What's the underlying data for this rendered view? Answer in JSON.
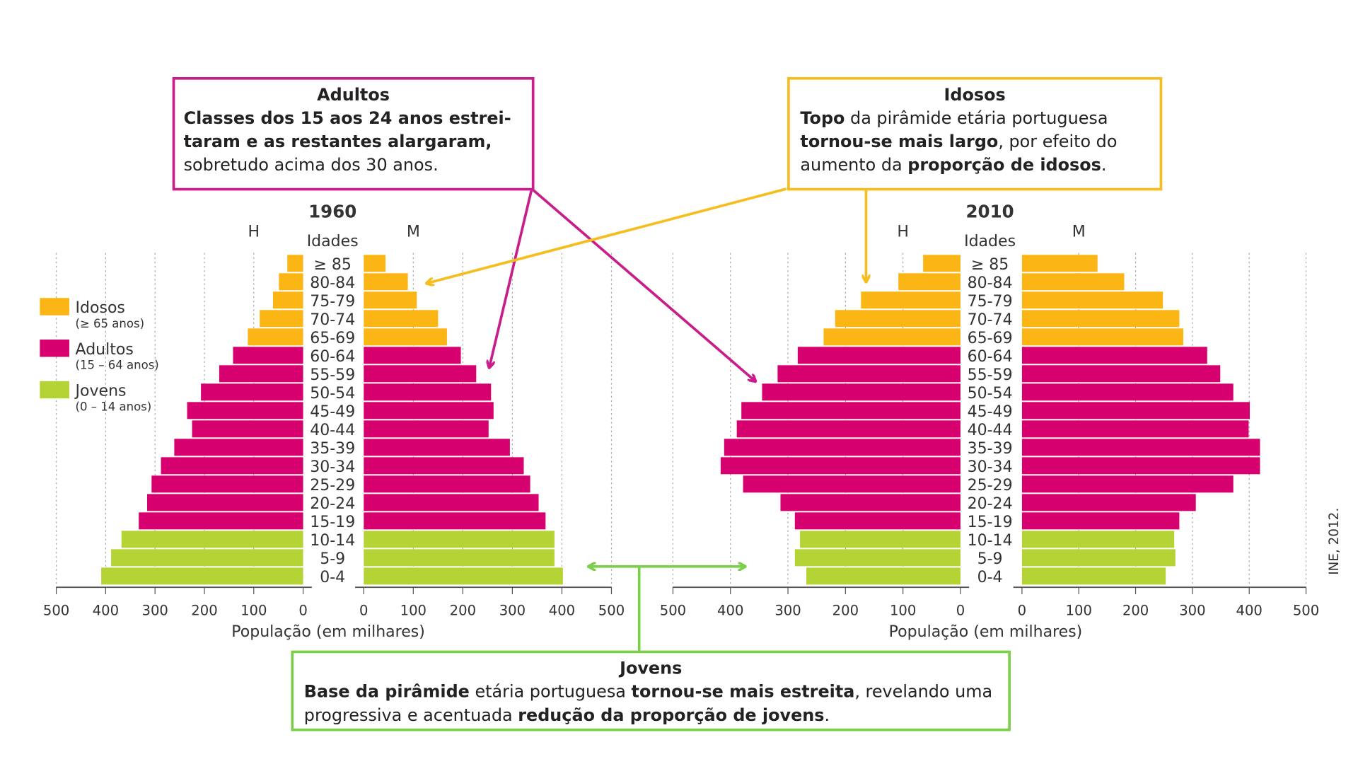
{
  "colors": {
    "idosos": "#fbb515",
    "adultos": "#d6006e",
    "jovens": "#b4d334",
    "adultos_box": "#c81d8a",
    "idosos_box": "#f5be1e",
    "jovens_box": "#7ccf4a"
  },
  "legend": [
    {
      "key": "idosos",
      "label": "Idosos",
      "sub": "(≥ 65 anos)"
    },
    {
      "key": "adultos",
      "label": "Adultos",
      "sub": "(15 – 64 anos)"
    },
    {
      "key": "jovens",
      "label": "Jovens",
      "sub": "(0 – 14 anos)"
    }
  ],
  "boxes": {
    "adultos": {
      "title": "Adultos",
      "segments": [
        {
          "text": "Classes dos 15 aos 24 anos estrei-taram e as restantes alargaram,",
          "bold": true
        },
        {
          "text": " sobretudo acima dos 30 anos.",
          "bold": false
        }
      ]
    },
    "idosos": {
      "title": "Idosos",
      "segments": [
        {
          "text": "Topo",
          "bold": true
        },
        {
          "text": " da pirâmide etária portuguesa ",
          "bold": false
        },
        {
          "text": "tornou-se mais largo",
          "bold": true
        },
        {
          "text": ", por efeito do aumento da ",
          "bold": false
        },
        {
          "text": "proporção de idosos",
          "bold": true
        },
        {
          "text": ".",
          "bold": false
        }
      ]
    },
    "jovens": {
      "title": "Jovens",
      "segments": [
        {
          "text": "Base da pirâmide",
          "bold": true
        },
        {
          "text": " etária portuguesa ",
          "bold": false
        },
        {
          "text": "tornou-se mais estreita",
          "bold": true
        },
        {
          "text": ", revelando uma progressiva e acentuada ",
          "bold": false
        },
        {
          "text": "redução da proporção de jovens",
          "bold": true
        },
        {
          "text": ".",
          "bold": false
        }
      ]
    }
  },
  "source": "INE, 2012.",
  "chart_data": [
    {
      "type": "bar",
      "title": "1960",
      "age_header": "Idades",
      "left_label": "H",
      "right_label": "M",
      "xlabel": "População (em milhares)",
      "xlim": [
        0,
        500
      ],
      "ticks": [
        "500",
        "400",
        "300",
        "200",
        "100",
        "0"
      ],
      "ticks_right": [
        "0",
        "100",
        "200",
        "300",
        "400",
        "500"
      ],
      "categories": [
        "≥ 85",
        "80-84",
        "75-79",
        "70-74",
        "65-69",
        "60-64",
        "55-59",
        "50-54",
        "45-49",
        "40-44",
        "35-39",
        "30-34",
        "25-29",
        "20-24",
        "15-19",
        "10-14",
        "5-9",
        "0-4"
      ],
      "groups": [
        "idosos",
        "idosos",
        "idosos",
        "idosos",
        "idosos",
        "adultos",
        "adultos",
        "adultos",
        "adultos",
        "adultos",
        "adultos",
        "adultos",
        "adultos",
        "adultos",
        "adultos",
        "jovens",
        "jovens",
        "jovens"
      ],
      "series": [
        {
          "name": "H",
          "values": [
            32,
            49,
            61,
            88,
            112,
            142,
            170,
            207,
            235,
            225,
            261,
            288,
            307,
            316,
            333,
            368,
            389,
            409
          ]
        },
        {
          "name": "M",
          "values": [
            44,
            89,
            107,
            150,
            168,
            196,
            227,
            257,
            262,
            252,
            295,
            323,
            336,
            353,
            367,
            385,
            385,
            402
          ]
        }
      ],
      "grid": true
    },
    {
      "type": "bar",
      "title": "2010",
      "age_header": "Idades",
      "left_label": "H",
      "right_label": "M",
      "xlabel": "População (em milhares)",
      "xlim": [
        0,
        500
      ],
      "ticks": [
        "500",
        "400",
        "300",
        "200",
        "100",
        "0"
      ],
      "ticks_right": [
        "0",
        "100",
        "200",
        "300",
        "400",
        "500"
      ],
      "categories": [
        "≥ 85",
        "80-84",
        "75-79",
        "70-74",
        "65-69",
        "60-64",
        "55-59",
        "50-54",
        "45-49",
        "40-44",
        "35-39",
        "30-34",
        "25-29",
        "20-24",
        "15-19",
        "10-14",
        "5-9",
        "0-4"
      ],
      "groups": [
        "idosos",
        "idosos",
        "idosos",
        "idosos",
        "idosos",
        "adultos",
        "adultos",
        "adultos",
        "adultos",
        "adultos",
        "adultos",
        "adultos",
        "adultos",
        "adultos",
        "adultos",
        "jovens",
        "jovens",
        "jovens"
      ],
      "series": [
        {
          "name": "H",
          "values": [
            65,
            108,
            173,
            218,
            238,
            283,
            318,
            345,
            381,
            389,
            411,
            417,
            378,
            313,
            288,
            279,
            288,
            268
          ]
        },
        {
          "name": "M",
          "values": [
            133,
            180,
            248,
            277,
            284,
            326,
            349,
            372,
            401,
            399,
            419,
            419,
            372,
            306,
            277,
            268,
            270,
            253
          ]
        }
      ],
      "grid": true
    }
  ]
}
